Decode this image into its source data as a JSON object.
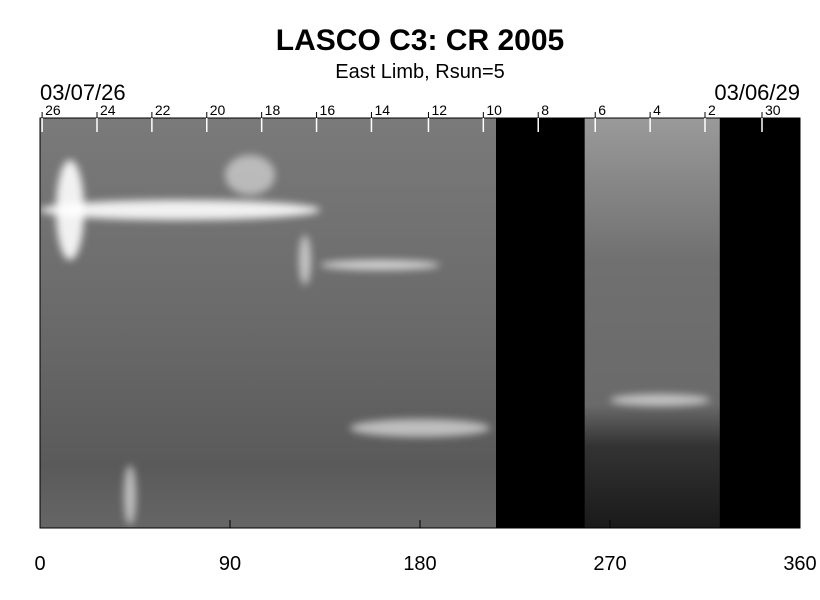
{
  "chart_data": {
    "type": "image",
    "title": "LASCO C3: CR 2005",
    "subtitle": "East Limb, Rsun=5",
    "start_date": "03/07/26",
    "end_date": "03/06/29",
    "xlim": [
      0,
      360
    ],
    "xticks": [
      0,
      90,
      180,
      270,
      360
    ],
    "top_ticks": [
      {
        "value": 1,
        "label": "26"
      },
      {
        "value": 27,
        "label": "24"
      },
      {
        "value": 53,
        "label": "22"
      },
      {
        "value": 79,
        "label": "20"
      },
      {
        "value": 105,
        "label": "18"
      },
      {
        "value": 131,
        "label": "16"
      },
      {
        "value": 157,
        "label": "14"
      },
      {
        "value": 184,
        "label": "12"
      },
      {
        "value": 210,
        "label": "10"
      },
      {
        "value": 236,
        "label": "8"
      },
      {
        "value": 263,
        "label": "6"
      },
      {
        "value": 289,
        "label": "4"
      },
      {
        "value": 315,
        "label": "2"
      },
      {
        "value": 342,
        "label": "30"
      }
    ],
    "missing": [
      [
        216,
        258
      ],
      [
        322,
        360
      ]
    ]
  }
}
